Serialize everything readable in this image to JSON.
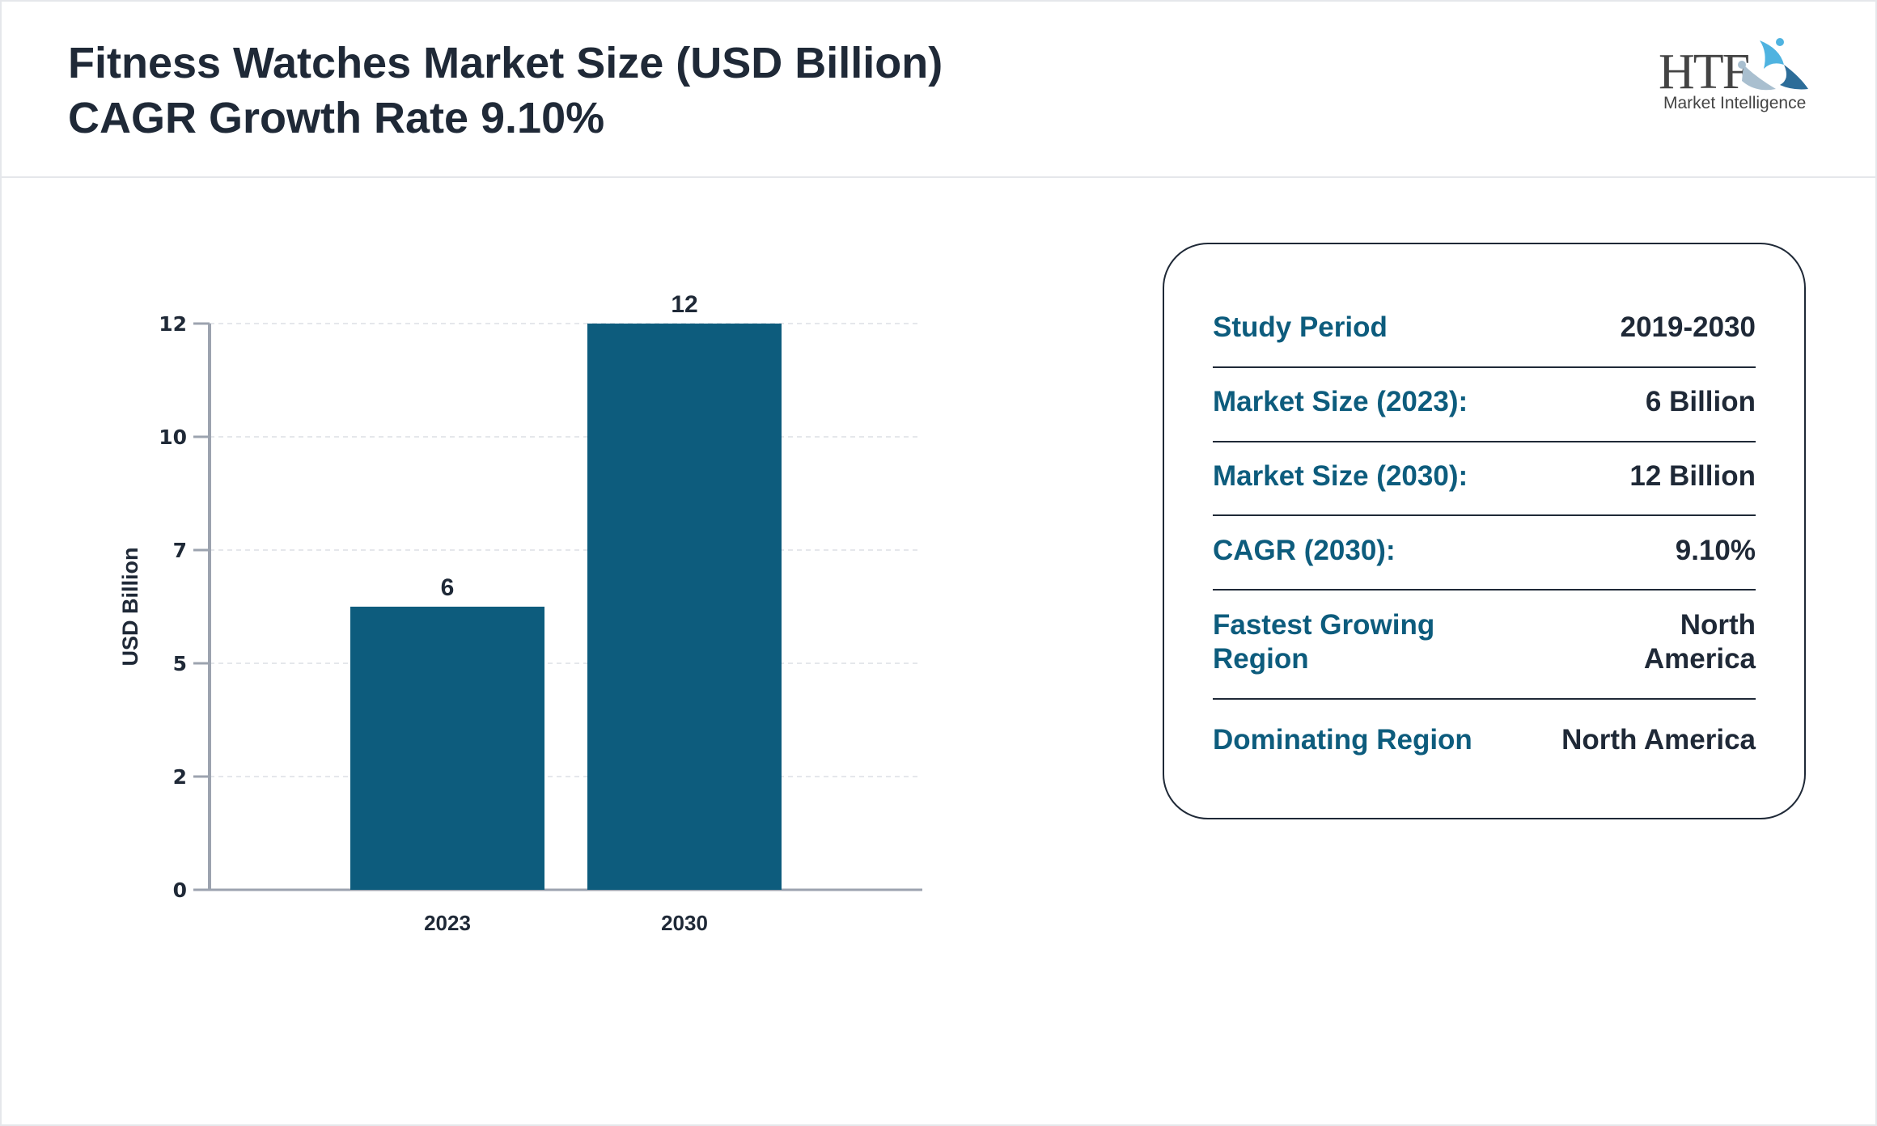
{
  "header": {
    "title_line1": "Fitness Watches Market Size (USD Billion)",
    "title_line2": "CAGR Growth Rate 9.10%",
    "logo": {
      "main": "HTF",
      "sub": "Market Intelligence"
    }
  },
  "chart_data": {
    "type": "bar",
    "categories": [
      "2023",
      "2030"
    ],
    "values": [
      6,
      12
    ],
    "data_labels": [
      "6",
      "12"
    ],
    "ylabel": "USD Billion",
    "xlabel": "",
    "ylim": [
      0,
      12
    ],
    "y_ticks": [
      0,
      2.4,
      4.8,
      7.2,
      9.6,
      12
    ],
    "y_tick_labels": [
      "0",
      "2",
      "5",
      "7",
      "10",
      "12"
    ],
    "grid": true,
    "bar_color": "#0d5c7d"
  },
  "info": {
    "rows": [
      {
        "label": "Study Period",
        "value": "2019-2030"
      },
      {
        "label": "Market Size (2023):",
        "value": "6 Billion"
      },
      {
        "label": "Market Size (2030):",
        "value": "12 Billion"
      },
      {
        "label": "CAGR (2030):",
        "value": "9.10%"
      },
      {
        "label": "Fastest Growing Region",
        "value": "North America"
      },
      {
        "label": "Dominating Region",
        "value": "North America"
      }
    ]
  }
}
